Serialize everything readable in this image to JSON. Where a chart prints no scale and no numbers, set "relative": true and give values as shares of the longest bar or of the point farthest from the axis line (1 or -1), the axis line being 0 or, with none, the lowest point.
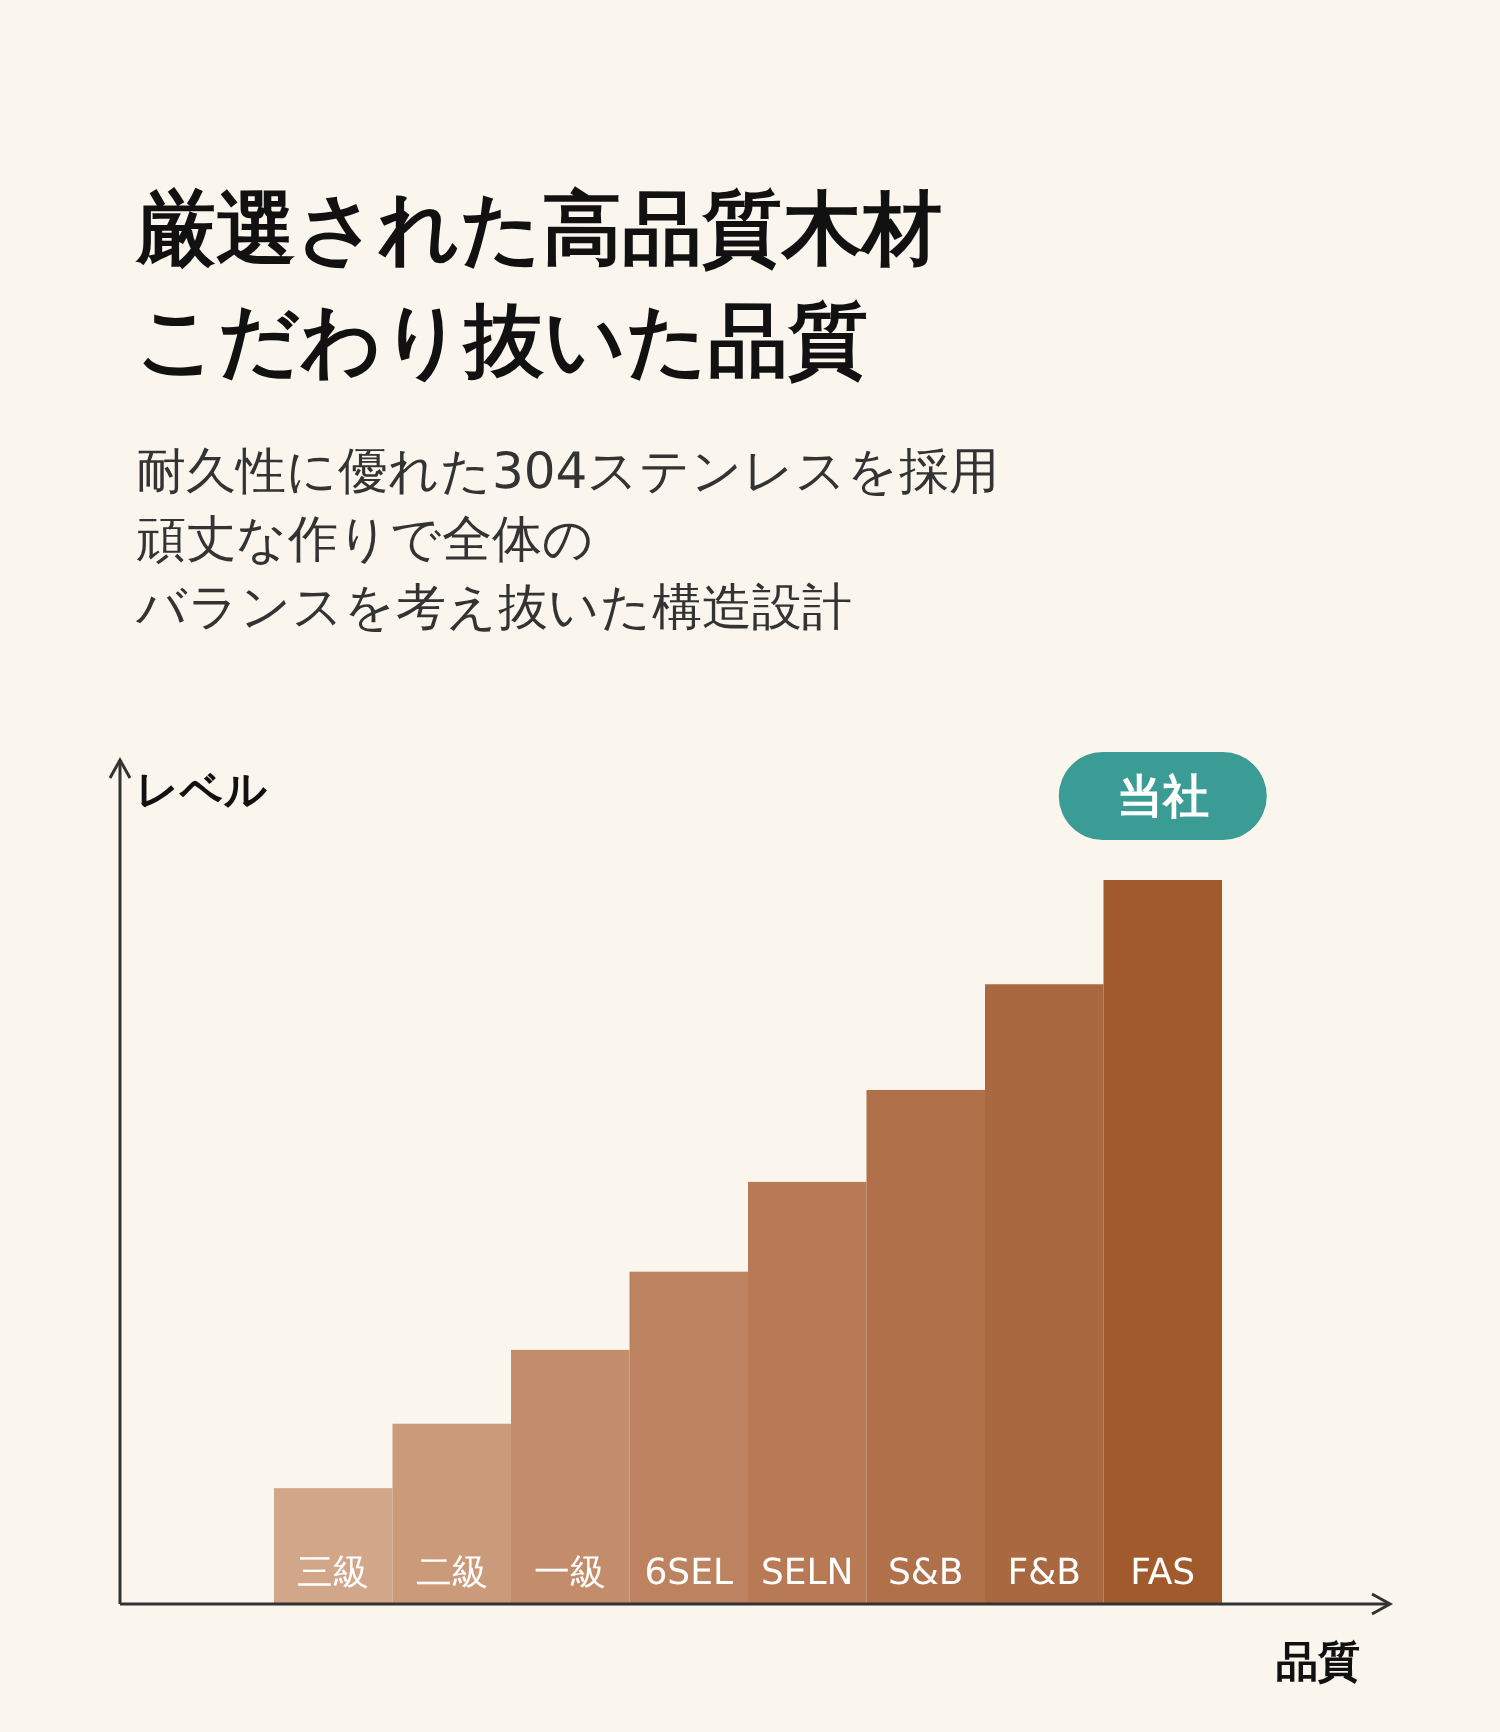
{
  "chart_data": {
    "type": "bar",
    "title": "厳選された高品質木材こだわり抜いた品質",
    "subtitle": "耐久性に優れた304ステンレスを採用",
    "xlabel": "品質",
    "ylabel": "レベル",
    "relative": true,
    "categories": [
      "三級",
      "二級",
      "一級",
      "6SEL",
      "SELN",
      "S&B",
      "F&B",
      "FAS"
    ],
    "values": [
      0.16,
      0.249,
      0.351,
      0.459,
      0.583,
      0.71,
      0.856,
      1
    ],
    "colors": [
      "#d2a689",
      "#cb9a7b",
      "#c38d6c",
      "#bd825f",
      "#b77a55",
      "#b0704a",
      "#a9683f",
      "#a05a2c"
    ],
    "annotations": [
      "頑丈な作りで全体の",
      "バランスを考え抜いた構造設計",
      "当社"
    ]
  }
}
